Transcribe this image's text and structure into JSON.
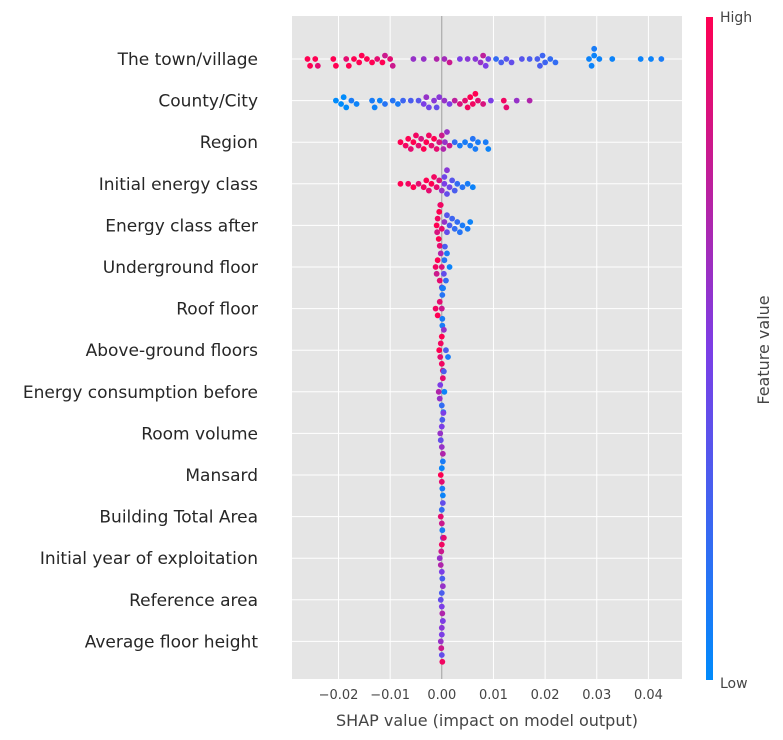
{
  "chart_data": {
    "type": "scatter",
    "subtype": "shap_beeswarm",
    "title": "",
    "xlabel": "SHAP value (impact on model output)",
    "xlim": [
      -0.029,
      0.0465
    ],
    "xticks": [
      -0.02,
      -0.01,
      0.0,
      0.01,
      0.02,
      0.03,
      0.04
    ],
    "xtick_labels": [
      "−0.02",
      "−0.01",
      "0.00",
      "0.01",
      "0.02",
      "0.03",
      "0.04"
    ],
    "grid": true,
    "colorbar": {
      "label": "Feature value",
      "high_label": "High",
      "low_label": "Low",
      "colors": {
        "low": "#008bfb",
        "mid": "#7c3ee6",
        "high": "#ff0052"
      }
    },
    "features": [
      {
        "name": "The town/village",
        "points": [
          [
            -0.026,
            1
          ],
          [
            -0.0255,
            1
          ],
          [
            -0.0245,
            1
          ],
          [
            -0.024,
            0.9
          ],
          [
            -0.021,
            1
          ],
          [
            -0.0205,
            1
          ],
          [
            -0.0185,
            0.9
          ],
          [
            -0.018,
            1
          ],
          [
            -0.017,
            1
          ],
          [
            -0.016,
            1
          ],
          [
            -0.0155,
            1
          ],
          [
            -0.0145,
            1
          ],
          [
            -0.0135,
            1
          ],
          [
            -0.0125,
            0.9
          ],
          [
            -0.0115,
            1
          ],
          [
            -0.011,
            0.8
          ],
          [
            -0.01,
            0.9
          ],
          [
            -0.0095,
            0.8
          ],
          [
            -0.0055,
            0.6
          ],
          [
            -0.0035,
            0.6
          ],
          [
            -0.001,
            0.7
          ],
          [
            0.0005,
            0.65
          ],
          [
            0.0015,
            0.8
          ],
          [
            0.0035,
            0.5
          ],
          [
            0.005,
            0.55
          ],
          [
            0.0065,
            0.55
          ],
          [
            0.0075,
            0.6
          ],
          [
            0.008,
            0.75
          ],
          [
            0.0085,
            0.5
          ],
          [
            0.009,
            0.45
          ],
          [
            0.0105,
            0.2
          ],
          [
            0.0115,
            0.3
          ],
          [
            0.0125,
            0.35
          ],
          [
            0.0135,
            0.4
          ],
          [
            0.0155,
            0.35
          ],
          [
            0.017,
            0.3
          ],
          [
            0.0185,
            0.3
          ],
          [
            0.019,
            0.3
          ],
          [
            0.0195,
            0.25
          ],
          [
            0.02,
            0.25
          ],
          [
            0.021,
            0.2
          ],
          [
            0.022,
            0.2
          ],
          [
            0.0285,
            0.05
          ],
          [
            0.029,
            0.05
          ],
          [
            0.0295,
            0.05
          ],
          [
            0.0305,
            0.05
          ],
          [
            0.0295,
            0.1
          ],
          [
            0.033,
            0.05
          ],
          [
            0.0385,
            0.05
          ],
          [
            0.0405,
            0.05
          ],
          [
            0.0425,
            0.1
          ]
        ]
      },
      {
        "name": "County/City",
        "points": [
          [
            -0.0205,
            0
          ],
          [
            -0.0195,
            0
          ],
          [
            -0.019,
            0
          ],
          [
            -0.0185,
            0
          ],
          [
            -0.0175,
            0.1
          ],
          [
            -0.0165,
            0.05
          ],
          [
            -0.0135,
            0.1
          ],
          [
            -0.013,
            0.05
          ],
          [
            -0.012,
            0.05
          ],
          [
            -0.011,
            0.15
          ],
          [
            -0.0095,
            0.15
          ],
          [
            -0.0085,
            0.1
          ],
          [
            -0.0075,
            0.25
          ],
          [
            -0.006,
            0.3
          ],
          [
            -0.0045,
            0.35
          ],
          [
            -0.0035,
            0.5
          ],
          [
            -0.003,
            0.6
          ],
          [
            -0.0025,
            0.45
          ],
          [
            -0.0015,
            0.55
          ],
          [
            -0.001,
            0.4
          ],
          [
            -0.0005,
            0.55
          ],
          [
            0.0005,
            0.6
          ],
          [
            0.0015,
            0.5
          ],
          [
            0.0025,
            0.75
          ],
          [
            0.0035,
            0.85
          ],
          [
            0.0045,
            0.9
          ],
          [
            0.005,
            0.95
          ],
          [
            0.0055,
            1
          ],
          [
            0.006,
            0.95
          ],
          [
            0.0065,
            1
          ],
          [
            0.007,
            0.9
          ],
          [
            0.008,
            0.85
          ],
          [
            0.0095,
            0.5
          ],
          [
            0.012,
            0.95
          ],
          [
            0.0125,
            0.9
          ],
          [
            0.0145,
            0.6
          ],
          [
            0.017,
            0.7
          ]
        ]
      },
      {
        "name": "Region",
        "points": [
          [
            -0.008,
            1
          ],
          [
            -0.007,
            0.95
          ],
          [
            -0.0065,
            1
          ],
          [
            -0.006,
            0.9
          ],
          [
            -0.0055,
            1
          ],
          [
            -0.005,
            0.95
          ],
          [
            -0.0045,
            0.9
          ],
          [
            -0.004,
            0.85
          ],
          [
            -0.0035,
            1
          ],
          [
            -0.003,
            1
          ],
          [
            -0.0025,
            0.95
          ],
          [
            -0.002,
            0.9
          ],
          [
            -0.0015,
            1
          ],
          [
            -0.001,
            0.9
          ],
          [
            -0.0005,
            0.85
          ],
          [
            0.0,
            0.8
          ],
          [
            0.0003,
            0.7
          ],
          [
            0.0006,
            0.6
          ],
          [
            0.001,
            0.6
          ],
          [
            0.0015,
            0.8
          ],
          [
            0.0025,
            0.2
          ],
          [
            0.0035,
            0.1
          ],
          [
            0.0045,
            0.1
          ],
          [
            0.0055,
            0.1
          ],
          [
            0.006,
            0.15
          ],
          [
            0.0065,
            0.1
          ],
          [
            0.007,
            0.1
          ],
          [
            0.0085,
            0.1
          ],
          [
            0.009,
            0.05
          ]
        ]
      },
      {
        "name": "Initial energy class",
        "points": [
          [
            -0.008,
            1
          ],
          [
            -0.0065,
            0.95
          ],
          [
            -0.0055,
            1
          ],
          [
            -0.0045,
            0.9
          ],
          [
            -0.0035,
            0.95
          ],
          [
            -0.003,
            1
          ],
          [
            -0.0025,
            0.9
          ],
          [
            -0.002,
            1
          ],
          [
            -0.0015,
            0.95
          ],
          [
            -0.001,
            0.9
          ],
          [
            -0.0005,
            0.85
          ],
          [
            0.0,
            0.6
          ],
          [
            0.0005,
            0.5
          ],
          [
            0.001,
            0.4
          ],
          [
            0.0015,
            0.45
          ],
          [
            0.002,
            0.35
          ],
          [
            0.0025,
            0.3
          ],
          [
            0.003,
            0.2
          ],
          [
            0.004,
            0.15
          ],
          [
            0.005,
            0.1
          ],
          [
            0.006,
            0.05
          ],
          [
            0.001,
            0.55
          ],
          [
            0.0005,
            0.45
          ]
        ]
      },
      {
        "name": "Energy class after",
        "points": [
          [
            -0.001,
            1
          ],
          [
            -0.0008,
            0.95
          ],
          [
            -0.0006,
            1
          ],
          [
            -0.0004,
            0.9
          ],
          [
            -0.0002,
            0.95
          ],
          [
            0.0,
            0.9
          ],
          [
            -0.0009,
            0.85
          ],
          [
            -0.0005,
            1
          ],
          [
            -0.0003,
            0.85
          ],
          [
            0.0005,
            0.6
          ],
          [
            0.001,
            0.4
          ],
          [
            0.0015,
            0.3
          ],
          [
            0.002,
            0.25
          ],
          [
            0.003,
            0.2
          ],
          [
            0.0035,
            0.15
          ],
          [
            0.004,
            0.1
          ],
          [
            0.005,
            0.1
          ],
          [
            0.0055,
            0.05
          ],
          [
            0.001,
            0.35
          ],
          [
            0.0025,
            0.2
          ]
        ]
      },
      {
        "name": "Underground floor",
        "points": [
          [
            -0.0012,
            0.95
          ],
          [
            -0.0008,
            1
          ],
          [
            -0.0004,
            0.9
          ],
          [
            0.0,
            0.85
          ],
          [
            -0.001,
            0.8
          ],
          [
            0.0,
            0.6
          ],
          [
            0.0004,
            0.4
          ],
          [
            0.0008,
            0.2
          ],
          [
            0.001,
            0.1
          ],
          [
            0.0015,
            0.05
          ],
          [
            0.0005,
            0.15
          ],
          [
            -0.0002,
            0.7
          ],
          [
            0.0006,
            0.3
          ]
        ]
      },
      {
        "name": "Roof floor",
        "points": [
          [
            -0.0012,
            0.95
          ],
          [
            -0.0008,
            1
          ],
          [
            -0.0004,
            0.9
          ],
          [
            0.0,
            0.8
          ],
          [
            0.0001,
            0.1
          ],
          [
            0.0002,
            0.05
          ],
          [
            0.0001,
            0.15
          ],
          [
            0.0002,
            0.05
          ],
          [
            0.0001,
            0.1
          ],
          [
            0.0002,
            0.05
          ],
          [
            0.0001,
            0.1
          ],
          [
            0.0002,
            0.1
          ],
          [
            0.0001,
            0.05
          ],
          [
            0.0002,
            0.1
          ]
        ]
      },
      {
        "name": "Above-ground floors",
        "points": [
          [
            -0.0005,
            1
          ],
          [
            0.0,
            0.95
          ],
          [
            -0.0003,
            0.9
          ],
          [
            0.0,
            1
          ],
          [
            -0.0002,
            0.95
          ],
          [
            0.0002,
            0.8
          ],
          [
            0.0004,
            0.6
          ],
          [
            0.0008,
            0.3
          ],
          [
            0.0012,
            0.1
          ]
        ]
      },
      {
        "name": "Energy consumption before",
        "points": [
          [
            -0.0006,
            0.7
          ],
          [
            -0.0003,
            0.5
          ],
          [
            0.0,
            0.2
          ],
          [
            0.0003,
            0.1
          ],
          [
            0.0005,
            0.05
          ],
          [
            -0.0004,
            0.6
          ],
          [
            0.0002,
            0.9
          ],
          [
            0.0004,
            0.3
          ]
        ]
      },
      {
        "name": "Room volume",
        "points": [
          [
            -0.0003,
            0.6
          ],
          [
            0.0,
            0.5
          ],
          [
            0.0003,
            0.5
          ],
          [
            -0.0002,
            0.4
          ],
          [
            0.0002,
            0.7
          ],
          [
            0.0001,
            0.3
          ],
          [
            0.0,
            0.6
          ]
        ]
      },
      {
        "name": "Mansard",
        "points": [
          [
            -0.0002,
            1
          ],
          [
            0.0,
            0.9
          ],
          [
            0.0002,
            0.1
          ],
          [
            0.0002,
            0.05
          ],
          [
            0.0,
            0.05
          ],
          [
            0.0001,
            0.1
          ]
        ]
      },
      {
        "name": "Building Total Area",
        "points": [
          [
            -0.0002,
            0.9
          ],
          [
            0.0,
            0.8
          ],
          [
            0.0002,
            0.4
          ],
          [
            0.0,
            0.2
          ],
          [
            0.0001,
            0.1
          ]
        ]
      },
      {
        "name": "Initial year of exploitation",
        "points": [
          [
            -0.0004,
            0.6
          ],
          [
            -0.0002,
            0.7
          ],
          [
            0.0,
            0.5
          ],
          [
            0.0002,
            0.6
          ],
          [
            0.0004,
            0.9
          ],
          [
            -0.0001,
            0.8
          ],
          [
            0.0001,
            0.3
          ],
          [
            0.0,
            0.95
          ],
          [
            0.0003,
            0.4
          ]
        ]
      },
      {
        "name": "Reference area",
        "points": [
          [
            -0.0002,
            0.4
          ],
          [
            0.0,
            0.5
          ],
          [
            0.0002,
            0.6
          ],
          [
            0.0,
            0.3
          ],
          [
            0.0001,
            0.7
          ]
        ]
      },
      {
        "name": "Average floor height",
        "points": [
          [
            -0.0002,
            0.6
          ],
          [
            0.0,
            0.5
          ],
          [
            0.0002,
            0.7
          ],
          [
            0.0,
            0.4
          ],
          [
            0.0001,
            0.95
          ],
          [
            0.0,
            0.55
          ],
          [
            -0.0001,
            0.8
          ],
          [
            0.0002,
            0.5
          ]
        ]
      }
    ]
  }
}
